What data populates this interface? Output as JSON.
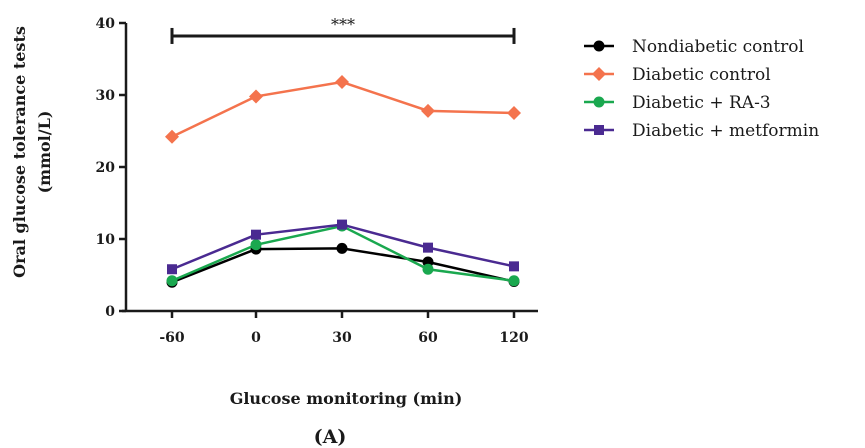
{
  "chart_data": {
    "type": "line",
    "title": "",
    "xlabel": "Glucose monitoring (min)",
    "ylabel_line1": "Oral glucose tolerance tests",
    "ylabel_line2": "(mmol/L)",
    "categories": [
      "-60",
      "0",
      "30",
      "60",
      "120"
    ],
    "ylim": [
      0,
      40
    ],
    "yticks": [
      "0",
      "10",
      "20",
      "30",
      "40"
    ],
    "grid": false,
    "legend_position": "right",
    "significance": {
      "label": "***",
      "from": "-60",
      "to": "120",
      "y": 38.2
    },
    "panel_label": "(A)",
    "series": [
      {
        "name": "Nondiabetic control",
        "color": "#000000",
        "marker": "circle",
        "values": [
          4.0,
          8.6,
          8.7,
          6.8,
          4.1
        ]
      },
      {
        "name": "Diabetic control",
        "color": "#f4734d",
        "marker": "diamond",
        "values": [
          24.2,
          29.8,
          31.8,
          27.8,
          27.5
        ]
      },
      {
        "name": "Diabetic + RA-3",
        "color": "#1aa84f",
        "marker": "circle",
        "values": [
          4.2,
          9.2,
          11.8,
          5.8,
          4.2
        ]
      },
      {
        "name": "Diabetic + metformin",
        "color": "#4a2a91",
        "marker": "square",
        "values": [
          5.8,
          10.6,
          12.0,
          8.8,
          6.2
        ]
      }
    ]
  }
}
